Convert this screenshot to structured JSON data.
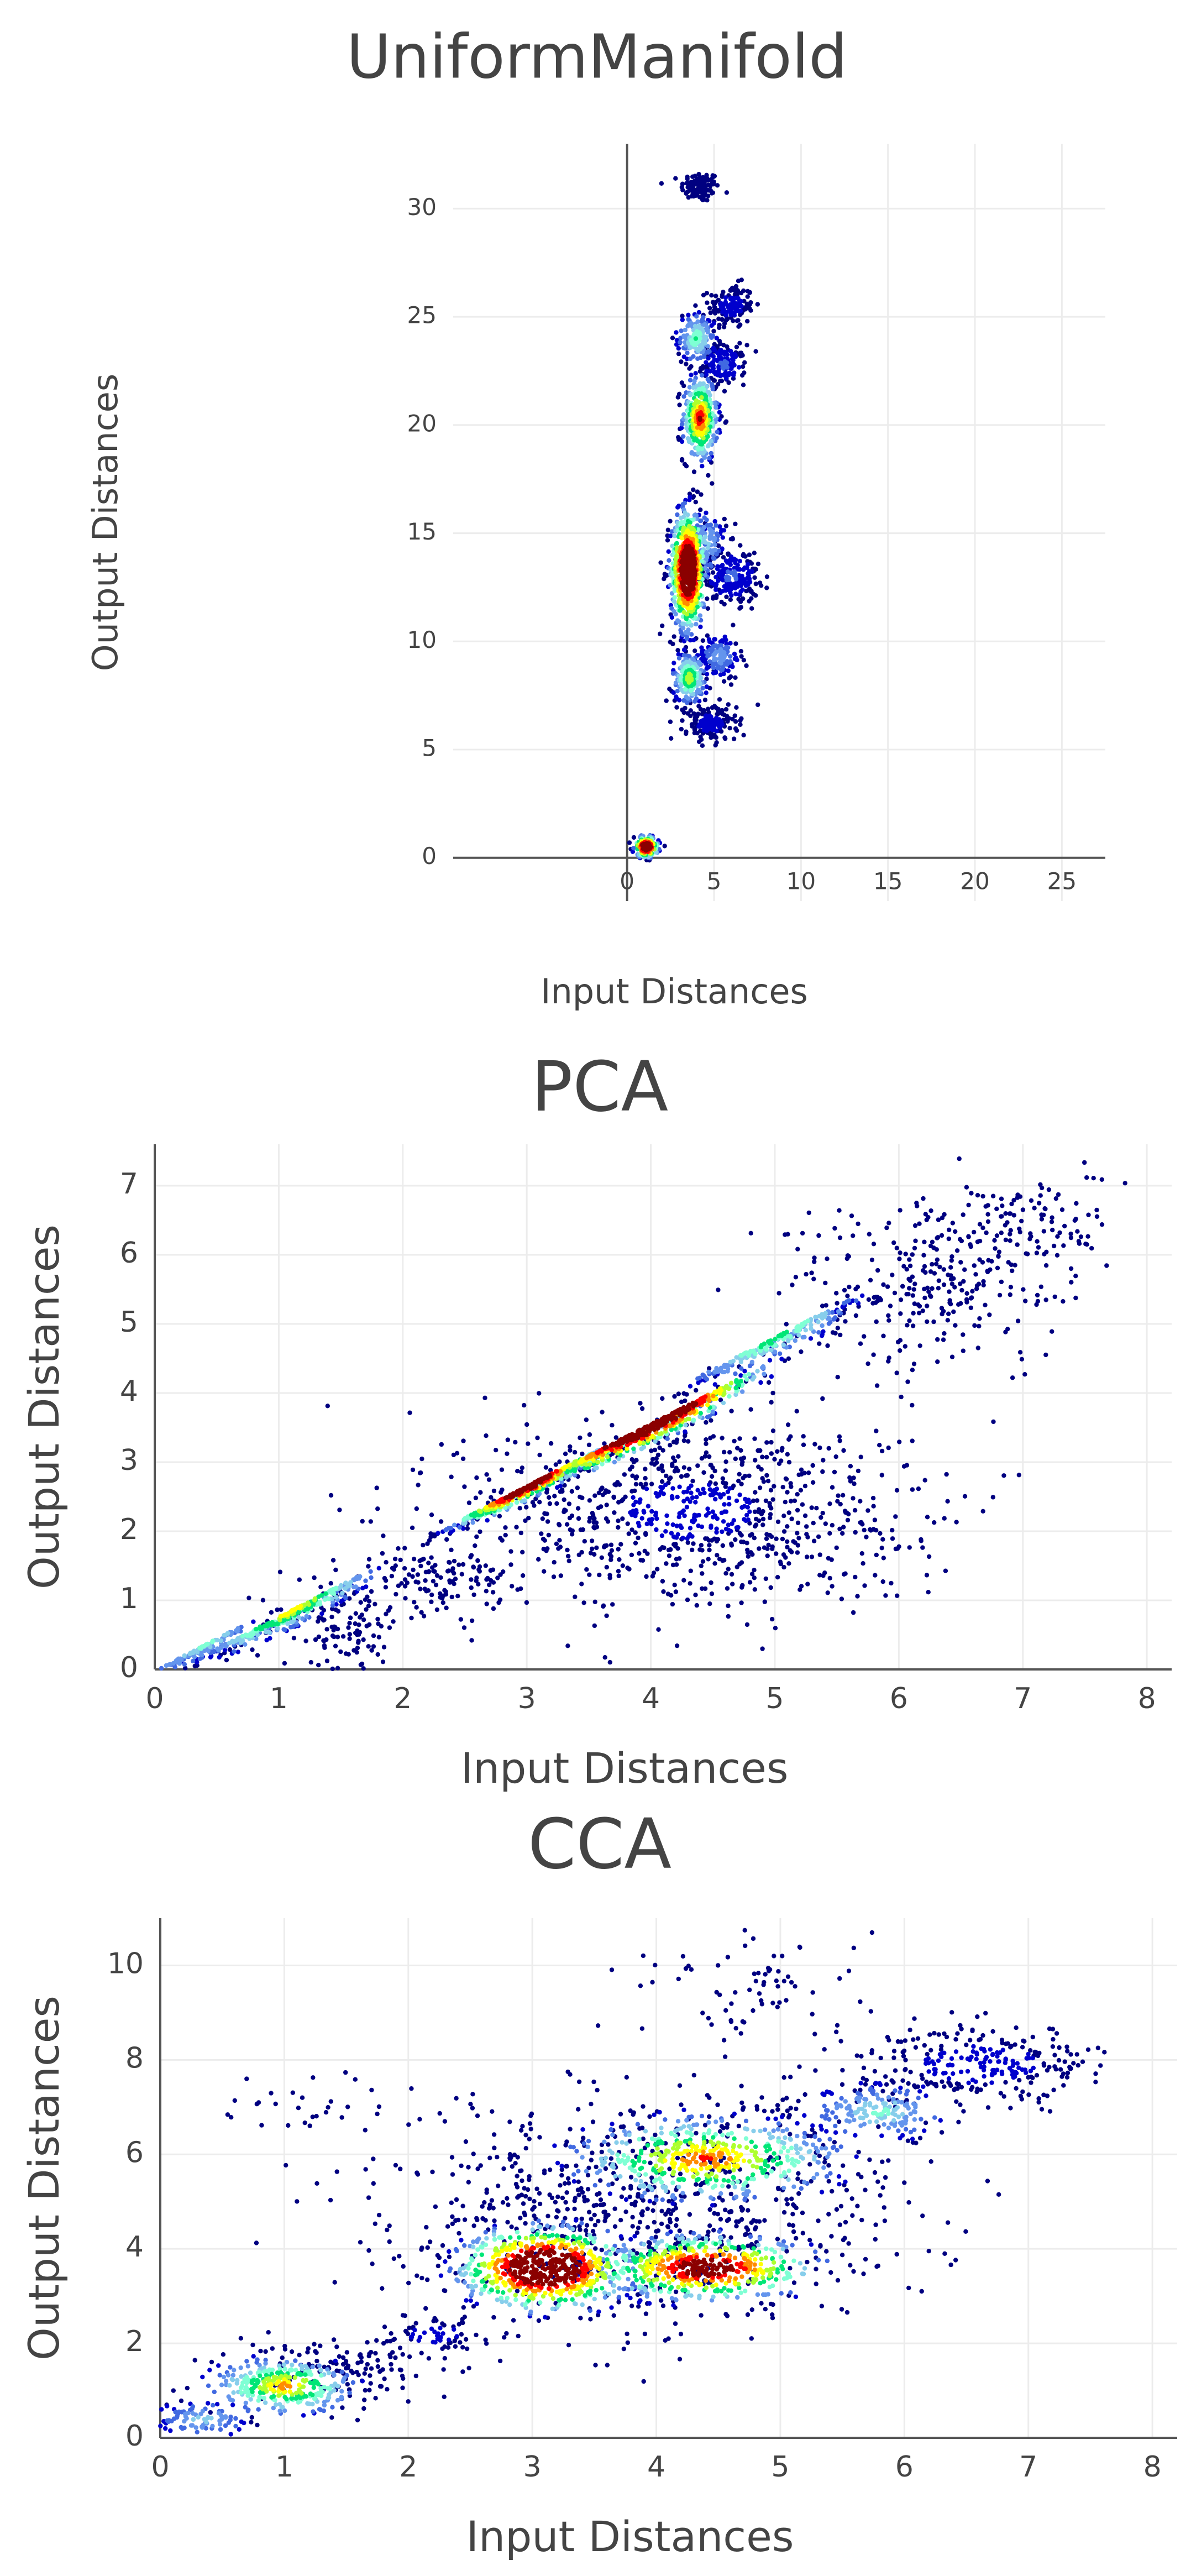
{
  "chart_data": [
    {
      "type": "scatter",
      "title": "UniformManifold",
      "xlabel": "Input Distances",
      "ylabel": "Output Distances",
      "xlim": [
        -10,
        27.5
      ],
      "ylim": [
        -2,
        33
      ],
      "xticks": [
        0,
        5,
        10,
        15,
        20,
        25
      ],
      "yticks": [
        0,
        5,
        10,
        15,
        20,
        25,
        30
      ],
      "grid": true,
      "colorscale": [
        "#000080",
        "#0000cd",
        "#4169e1",
        "#6495ed",
        "#87ceeb",
        "#7fffd4",
        "#00e676",
        "#adff2f",
        "#ffff00",
        "#ff8c00",
        "#ff0000",
        "#8b0000"
      ],
      "clusters": [
        {
          "x": 4.2,
          "y": 31.0,
          "sx": 0.55,
          "sy": 0.35,
          "n": 110,
          "density": 0.05
        },
        {
          "x": 6.0,
          "y": 25.5,
          "sx": 0.65,
          "sy": 0.5,
          "n": 140,
          "density": 0.1
        },
        {
          "x": 4.0,
          "y": 24.0,
          "sx": 0.55,
          "sy": 0.6,
          "n": 160,
          "density": 0.4
        },
        {
          "x": 5.6,
          "y": 22.8,
          "sx": 0.6,
          "sy": 0.45,
          "n": 140,
          "density": 0.15
        },
        {
          "x": 4.2,
          "y": 20.3,
          "sx": 0.5,
          "sy": 1.0,
          "n": 360,
          "density": 0.7
        },
        {
          "x": 3.5,
          "y": 13.3,
          "sx": 0.5,
          "sy": 1.4,
          "n": 700,
          "density": 1.0
        },
        {
          "x": 6.0,
          "y": 13.0,
          "sx": 0.8,
          "sy": 0.6,
          "n": 200,
          "density": 0.15
        },
        {
          "x": 4.5,
          "y": 14.5,
          "sx": 0.6,
          "sy": 0.8,
          "n": 150,
          "density": 0.3
        },
        {
          "x": 3.6,
          "y": 8.3,
          "sx": 0.5,
          "sy": 0.6,
          "n": 200,
          "density": 0.5
        },
        {
          "x": 5.3,
          "y": 9.3,
          "sx": 0.6,
          "sy": 0.5,
          "n": 150,
          "density": 0.25
        },
        {
          "x": 4.8,
          "y": 6.2,
          "sx": 0.75,
          "sy": 0.4,
          "n": 170,
          "density": 0.1
        },
        {
          "x": 1.1,
          "y": 0.5,
          "sx": 0.35,
          "sy": 0.25,
          "n": 160,
          "density": 0.95
        }
      ]
    },
    {
      "type": "scatter",
      "title": "PCA",
      "xlabel": "Input Distances",
      "ylabel": "Output Distances",
      "xlim": [
        0,
        8.2
      ],
      "ylim": [
        0,
        7.6
      ],
      "xticks": [
        0,
        1,
        2,
        3,
        4,
        5,
        6,
        7,
        8
      ],
      "yticks": [
        0,
        1,
        2,
        3,
        4,
        5,
        6,
        7
      ],
      "grid": true,
      "colorscale": [
        "#000080",
        "#0000cd",
        "#4169e1",
        "#6495ed",
        "#87ceeb",
        "#7fffd4",
        "#00e676",
        "#adff2f",
        "#ffff00",
        "#ff8c00",
        "#ff0000",
        "#8b0000"
      ],
      "clusters": [
        {
          "x": 0.4,
          "y": 0.35,
          "sx": 0.25,
          "sy": 0.2,
          "n": 120,
          "density": 0.35,
          "band": "diag"
        },
        {
          "x": 1.1,
          "y": 0.85,
          "sx": 0.35,
          "sy": 0.25,
          "n": 320,
          "density": 0.55,
          "band": "diag"
        },
        {
          "x": 1.5,
          "y": 0.6,
          "sx": 0.25,
          "sy": 0.35,
          "n": 120,
          "density": 0.05
        },
        {
          "x": 2.3,
          "y": 1.3,
          "sx": 0.25,
          "sy": 0.25,
          "n": 120,
          "density": 0.05
        },
        {
          "x": 3.0,
          "y": 2.65,
          "sx": 0.3,
          "sy": 0.2,
          "n": 420,
          "density": 0.9,
          "band": "diag"
        },
        {
          "x": 4.0,
          "y": 3.55,
          "sx": 0.45,
          "sy": 0.3,
          "n": 650,
          "density": 1.0,
          "band": "diag"
        },
        {
          "x": 5.0,
          "y": 4.8,
          "sx": 0.35,
          "sy": 0.3,
          "n": 260,
          "density": 0.45,
          "band": "diag"
        },
        {
          "x": 4.3,
          "y": 2.3,
          "sx": 0.9,
          "sy": 0.7,
          "n": 900,
          "density": 0.08
        },
        {
          "x": 6.3,
          "y": 5.6,
          "sx": 0.6,
          "sy": 0.6,
          "n": 280,
          "density": 0.05
        },
        {
          "x": 7.0,
          "y": 6.5,
          "sx": 0.35,
          "sy": 0.35,
          "n": 90,
          "density": 0.05
        }
      ]
    },
    {
      "type": "scatter",
      "title": "CCA",
      "xlabel": "Input Distances",
      "ylabel": "Output Distances",
      "xlim": [
        0,
        8.2
      ],
      "ylim": [
        0,
        11.0
      ],
      "xticks": [
        0,
        1,
        2,
        3,
        4,
        5,
        6,
        7,
        8
      ],
      "yticks": [
        0,
        2,
        4,
        6,
        8,
        10
      ],
      "grid": true,
      "colorscale": [
        "#000080",
        "#0000cd",
        "#4169e1",
        "#6495ed",
        "#87ceeb",
        "#7fffd4",
        "#00e676",
        "#adff2f",
        "#ffff00",
        "#ff8c00",
        "#ff0000",
        "#8b0000"
      ],
      "clusters": [
        {
          "x": 0.35,
          "y": 0.4,
          "sx": 0.2,
          "sy": 0.2,
          "n": 90,
          "density": 0.3
        },
        {
          "x": 1.0,
          "y": 1.1,
          "sx": 0.3,
          "sy": 0.3,
          "n": 330,
          "density": 0.6
        },
        {
          "x": 1.5,
          "y": 1.5,
          "sx": 0.3,
          "sy": 0.3,
          "n": 110,
          "density": 0.05
        },
        {
          "x": 2.2,
          "y": 2.2,
          "sx": 0.2,
          "sy": 0.2,
          "n": 70,
          "density": 0.1
        },
        {
          "x": 3.1,
          "y": 3.6,
          "sx": 0.35,
          "sy": 0.45,
          "n": 700,
          "density": 1.0
        },
        {
          "x": 4.4,
          "y": 3.6,
          "sx": 0.45,
          "sy": 0.35,
          "n": 520,
          "density": 0.85
        },
        {
          "x": 4.4,
          "y": 5.9,
          "sx": 0.55,
          "sy": 0.45,
          "n": 520,
          "density": 0.65
        },
        {
          "x": 5.8,
          "y": 6.9,
          "sx": 0.3,
          "sy": 0.3,
          "n": 180,
          "density": 0.35
        },
        {
          "x": 6.6,
          "y": 7.9,
          "sx": 0.5,
          "sy": 0.4,
          "n": 280,
          "density": 0.1
        },
        {
          "x": 3.9,
          "y": 4.9,
          "sx": 1.0,
          "sy": 1.2,
          "n": 700,
          "density": 0.05
        },
        {
          "x": 4.8,
          "y": 9.6,
          "sx": 0.5,
          "sy": 0.5,
          "n": 70,
          "density": 0.02
        },
        {
          "x": 1.2,
          "y": 7.0,
          "sx": 0.45,
          "sy": 0.4,
          "n": 30,
          "density": 0.02
        }
      ]
    }
  ]
}
